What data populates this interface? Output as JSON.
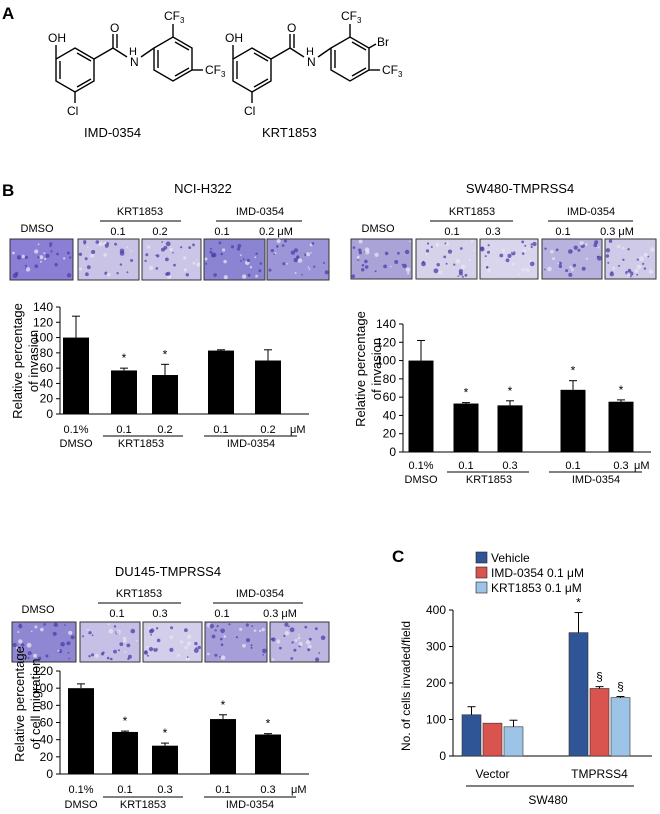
{
  "panels": {
    "A": "A",
    "B": "B",
    "C": "C"
  },
  "structures": {
    "compound1": {
      "label": "IMD-0354",
      "atoms": {
        "oh": "OH",
        "o": "O",
        "nh": "H",
        "n": "N",
        "cl": "Cl",
        "cf3a": "CF",
        "cf3b": "CF",
        "sub3": "3"
      }
    },
    "compound2": {
      "label": "KRT1853",
      "atoms": {
        "oh": "OH",
        "o": "O",
        "nh": "H",
        "n": "N",
        "cl": "Cl",
        "cf3a": "CF",
        "cf3b": "CF",
        "br": "Br",
        "sub3": "3"
      }
    }
  },
  "charts": [
    {
      "title": "NCI-H322",
      "dmso_label": "DMSO",
      "groups": [
        {
          "name": "KRT1853",
          "doses": [
            "0.1",
            "0.2"
          ]
        },
        {
          "name": "IMD-0354",
          "doses": [
            "0.1",
            "0.2 μM"
          ]
        }
      ],
      "image_colors": [
        "#8a7fd4",
        "#c9c4e6",
        "#cbc6e8",
        "#8b84d2",
        "#9c95d8"
      ]
    },
    {
      "title": "SW480-TMPRSS4",
      "dmso_label": "DMSO",
      "groups": [
        {
          "name": "KRT1853",
          "doses": [
            "0.1",
            "0.3"
          ]
        },
        {
          "name": "IMD-0354",
          "doses": [
            "0.1",
            "0.3 μM"
          ]
        }
      ],
      "image_colors": [
        "#a9a3d8",
        "#d6d2ea",
        "#d8d5ec",
        "#b8b2de",
        "#cfcae8"
      ]
    },
    {
      "title": "DU145-TMPRSS4",
      "dmso_label": "DMSO",
      "groups": [
        {
          "name": "KRT1853",
          "doses": [
            "0.1",
            "0.3"
          ]
        },
        {
          "name": "IMD-0354",
          "doses": [
            "0.1",
            "0.3 μM"
          ]
        }
      ],
      "image_colors": [
        "#9087d3",
        "#c6c0e6",
        "#d3cfea",
        "#a59ed9",
        "#bcb6e1"
      ]
    }
  ],
  "chart_data": [
    {
      "type": "bar",
      "ylabel_line1": "Relative percentage",
      "ylabel_line2": "of invasion",
      "ylim": [
        0,
        140
      ],
      "yticks": [
        "0",
        "20",
        "40",
        "60",
        "80",
        "100",
        "120",
        "140"
      ],
      "categories": [
        "0.1%",
        "0.1",
        "0.2",
        "0.1",
        "0.2"
      ],
      "unit": "μM",
      "group_labels": [
        "DMSO",
        "KRT1853",
        "IMD-0354"
      ],
      "values": [
        100,
        57,
        51,
        83,
        70
      ],
      "errors": [
        28,
        3,
        14,
        1,
        14
      ],
      "significance": [
        "",
        "*",
        "*",
        "",
        ""
      ],
      "color": "#000000"
    },
    {
      "type": "bar",
      "ylabel_line1": "Relative percentage",
      "ylabel_line2": "of invasion",
      "ylim": [
        0,
        140
      ],
      "yticks": [
        "0",
        "20",
        "40",
        "60",
        "80",
        "100",
        "120",
        "140"
      ],
      "categories": [
        "0.1%",
        "0.1",
        "0.3",
        "0.1",
        "0.3"
      ],
      "unit": "μM",
      "group_labels": [
        "DMSO",
        "KRT1853",
        "IMD-0354"
      ],
      "values": [
        100,
        53,
        51,
        68,
        55
      ],
      "errors": [
        22,
        1,
        5,
        10,
        2
      ],
      "significance": [
        "",
        "*",
        "*",
        "*",
        "*"
      ],
      "color": "#000000"
    },
    {
      "type": "bar",
      "ylabel_line1": "Relative percentage",
      "ylabel_line2": "of cell migration",
      "ylim": [
        0,
        120
      ],
      "yticks": [
        "0",
        "20",
        "40",
        "60",
        "80",
        "100",
        "120"
      ],
      "categories": [
        "0.1%",
        "0.1",
        "0.3",
        "0.1",
        "0.3"
      ],
      "unit": "μM",
      "group_labels": [
        "DMSO",
        "KRT1853",
        "IMD-0354"
      ],
      "values": [
        100,
        49,
        33,
        64,
        46
      ],
      "errors": [
        5,
        1,
        3,
        5,
        1
      ],
      "significance": [
        "",
        "*",
        "*",
        "*",
        "*"
      ],
      "color": "#000000"
    },
    {
      "type": "bar",
      "ylabel": "No. of cells invaded/field",
      "ylim": [
        0,
        400
      ],
      "yticks": [
        "0",
        "100",
        "200",
        "300",
        "400"
      ],
      "categories": [
        "Vector",
        "TMPRSS4"
      ],
      "xlabel": "SW480",
      "series": [
        {
          "name": "Vehicle",
          "color": "#2f5597",
          "values": [
            113,
            338
          ],
          "errors": [
            22,
            55
          ],
          "marks": [
            "",
            "*"
          ]
        },
        {
          "name": "IMD-0354 0.1 μM",
          "color": "#d9534f",
          "values": [
            90,
            185
          ],
          "errors": [
            0,
            5
          ],
          "marks": [
            "",
            "§"
          ]
        },
        {
          "name": "KRT1853 0.1 μM",
          "color": "#9dc3e6",
          "values": [
            80,
            160
          ],
          "errors": [
            18,
            3
          ],
          "marks": [
            "",
            "§"
          ]
        }
      ],
      "legend": "top-left"
    }
  ]
}
